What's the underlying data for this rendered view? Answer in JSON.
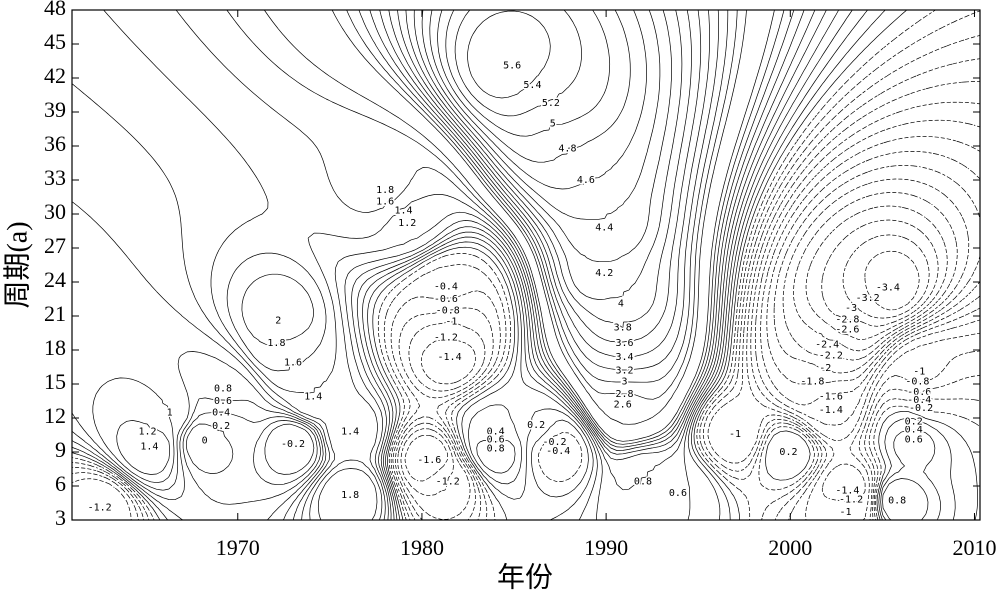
{
  "chart_data": {
    "type": "contour",
    "x_label": "年份",
    "y_label": "周期(a)",
    "xlim": [
      1961,
      2010.3
    ],
    "xticks": [
      1970,
      1980,
      1990,
      2000,
      2010
    ],
    "ylim": [
      3,
      48
    ],
    "yticks": [
      3,
      6,
      9,
      12,
      15,
      18,
      21,
      24,
      27,
      30,
      33,
      36,
      39,
      42,
      45,
      48
    ],
    "line_color": "#000000",
    "negative_dashed": true,
    "contour_labels": [
      {
        "x": 1984.9,
        "y": 43.1,
        "value": 5.6
      },
      {
        "x": 1986.0,
        "y": 41.4,
        "value": 5.4
      },
      {
        "x": 1987.0,
        "y": 39.8,
        "value": 5.2
      },
      {
        "x": 1987.1,
        "y": 38.0,
        "value": 5
      },
      {
        "x": 1987.9,
        "y": 35.8,
        "value": 4.8
      },
      {
        "x": 1988.9,
        "y": 33.0,
        "value": 4.6
      },
      {
        "x": 1989.9,
        "y": 28.8,
        "value": 4.4
      },
      {
        "x": 1989.9,
        "y": 24.8,
        "value": 4.2
      },
      {
        "x": 1990.8,
        "y": 22.1,
        "value": 4
      },
      {
        "x": 1990.9,
        "y": 20.0,
        "value": 3.8
      },
      {
        "x": 1991.0,
        "y": 18.6,
        "value": 3.6
      },
      {
        "x": 1991.0,
        "y": 17.4,
        "value": 3.4
      },
      {
        "x": 1991.0,
        "y": 16.2,
        "value": 3.2
      },
      {
        "x": 1991.0,
        "y": 15.2,
        "value": 3
      },
      {
        "x": 1991.0,
        "y": 14.1,
        "value": 2.8
      },
      {
        "x": 1990.9,
        "y": 13.2,
        "value": 2.6
      },
      {
        "x": 1972.2,
        "y": 20.6,
        "value": 2
      },
      {
        "x": 1972.1,
        "y": 18.6,
        "value": 1.8
      },
      {
        "x": 1973.0,
        "y": 16.9,
        "value": 1.6
      },
      {
        "x": 1974.1,
        "y": 13.9,
        "value": 1.4
      },
      {
        "x": 1978.0,
        "y": 32.1,
        "value": 1.8
      },
      {
        "x": 1978.0,
        "y": 31.1,
        "value": 1.6
      },
      {
        "x": 1979.0,
        "y": 30.3,
        "value": 1.4
      },
      {
        "x": 1979.2,
        "y": 29.2,
        "value": 1.2
      },
      {
        "x": 1969.2,
        "y": 14.6,
        "value": 0.8
      },
      {
        "x": 1969.2,
        "y": 13.5,
        "value": 0.6
      },
      {
        "x": 1969.1,
        "y": 12.5,
        "value": 0.4
      },
      {
        "x": 1969.1,
        "y": 11.3,
        "value": 0.2
      },
      {
        "x": 1968.2,
        "y": 10.0,
        "value": 0
      },
      {
        "x": 1966.3,
        "y": 12.5,
        "value": 1
      },
      {
        "x": 1965.1,
        "y": 10.8,
        "value": 1.2
      },
      {
        "x": 1965.2,
        "y": 9.5,
        "value": 1.4
      },
      {
        "x": 1962.5,
        "y": 4.1,
        "value": -1.2
      },
      {
        "x": 1973.0,
        "y": 9.7,
        "value": -0.2
      },
      {
        "x": 1981.3,
        "y": 23.6,
        "value": -0.4
      },
      {
        "x": 1981.3,
        "y": 22.5,
        "value": -0.6
      },
      {
        "x": 1981.4,
        "y": 21.5,
        "value": -0.8
      },
      {
        "x": 1981.6,
        "y": 20.5,
        "value": -1
      },
      {
        "x": 1981.3,
        "y": 19.1,
        "value": -1.2
      },
      {
        "x": 1981.5,
        "y": 17.4,
        "value": -1.4
      },
      {
        "x": 1980.4,
        "y": 8.3,
        "value": -1.6
      },
      {
        "x": 1981.4,
        "y": 6.4,
        "value": -1.2
      },
      {
        "x": 1984.0,
        "y": 10.8,
        "value": 0.4
      },
      {
        "x": 1984.0,
        "y": 10.1,
        "value": 0.6
      },
      {
        "x": 1984.0,
        "y": 9.3,
        "value": 0.8
      },
      {
        "x": 1986.2,
        "y": 11.4,
        "value": 0.2
      },
      {
        "x": 1987.2,
        "y": 9.9,
        "value": -0.2
      },
      {
        "x": 1987.4,
        "y": 9.1,
        "value": -0.4
      },
      {
        "x": 1976.1,
        "y": 5.2,
        "value": 1.8
      },
      {
        "x": 1976.1,
        "y": 10.8,
        "value": 1.4
      },
      {
        "x": 1992.0,
        "y": 6.4,
        "value": 0.8
      },
      {
        "x": 1993.9,
        "y": 5.4,
        "value": 0.6
      },
      {
        "x": 1997.0,
        "y": 10.6,
        "value": -1
      },
      {
        "x": 1999.9,
        "y": 9.0,
        "value": 0.2
      },
      {
        "x": 2005.8,
        "y": 4.7,
        "value": 0.8
      },
      {
        "x": 2006.7,
        "y": 10.1,
        "value": 0.6
      },
      {
        "x": 2006.7,
        "y": 11.0,
        "value": 0.4
      },
      {
        "x": 2006.7,
        "y": 11.7,
        "value": 0.2
      },
      {
        "x": 2002.0,
        "y": 18.5,
        "value": -2.4
      },
      {
        "x": 2002.2,
        "y": 17.5,
        "value": -2.2
      },
      {
        "x": 2001.9,
        "y": 16.4,
        "value": -2
      },
      {
        "x": 2001.2,
        "y": 15.2,
        "value": -1.8
      },
      {
        "x": 2002.2,
        "y": 13.9,
        "value": -1.6
      },
      {
        "x": 2002.2,
        "y": 12.7,
        "value": -1.4
      },
      {
        "x": 2003.1,
        "y": 20.7,
        "value": -2.8
      },
      {
        "x": 2003.1,
        "y": 19.8,
        "value": -2.6
      },
      {
        "x": 2003.3,
        "y": 21.7,
        "value": -3
      },
      {
        "x": 2004.2,
        "y": 22.6,
        "value": -3.2
      },
      {
        "x": 2005.3,
        "y": 23.5,
        "value": -3.4
      },
      {
        "x": 2003.1,
        "y": 5.6,
        "value": -1.4
      },
      {
        "x": 2003.3,
        "y": 4.8,
        "value": -1.2
      },
      {
        "x": 2003.0,
        "y": 3.7,
        "value": -1
      },
      {
        "x": 2007.0,
        "y": 16.1,
        "value": -1
      },
      {
        "x": 2006.9,
        "y": 15.2,
        "value": -0.8
      },
      {
        "x": 2007.0,
        "y": 14.3,
        "value": -0.6
      },
      {
        "x": 2007.0,
        "y": 13.6,
        "value": -0.4
      },
      {
        "x": 2007.1,
        "y": 12.9,
        "value": -0.2
      }
    ]
  }
}
